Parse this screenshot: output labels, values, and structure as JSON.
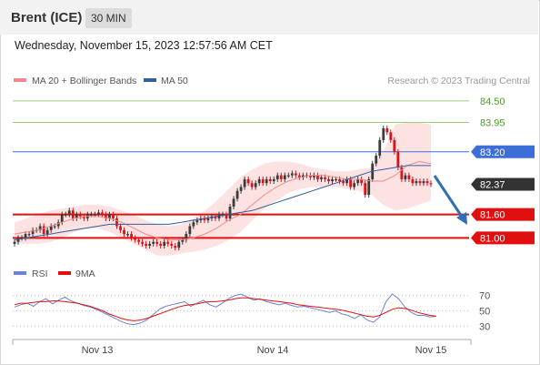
{
  "header": {
    "instrument": "Brent (ICE)",
    "timeframe": "30 MIN",
    "timestamp": "Wednesday, November 15, 2023 12:57:56 AM CET"
  },
  "legend": {
    "ma20": "MA 20 + Bollinger Bands",
    "ma50": "MA 50",
    "copyright": "Research © 2023 Trading Central",
    "rsi": "RSI",
    "rsi_ma": "9MA"
  },
  "colors": {
    "candle_up": "#3a3a3a",
    "candle_down": "#d8141b",
    "bollinger_fill": "#fde2e2",
    "ma20_line": "#f08a8a",
    "ma50_line": "#2f5fa0",
    "resistance_line": "#9acd7a",
    "pivot_line": "#3b6ed6",
    "support_line": "#e01010",
    "rsi_line": "#6a82d8",
    "rsi_ma_line": "#e01010",
    "arrow": "#2e6fb5"
  },
  "chart_data": [
    {
      "type": "candlestick",
      "title": "Brent (ICE)",
      "timeframe": "30 MIN",
      "x_labels": [
        "Nov 13",
        "Nov 14",
        "Nov 15"
      ],
      "ylim": [
        80.8,
        84.8
      ],
      "levels": [
        {
          "value": 84.5,
          "label": "84.50",
          "kind": "resistance"
        },
        {
          "value": 83.95,
          "label": "83.95",
          "kind": "resistance"
        },
        {
          "value": 83.2,
          "label": "83.20",
          "kind": "pivot"
        },
        {
          "value": 82.37,
          "label": "82.37",
          "kind": "last"
        },
        {
          "value": 81.6,
          "label": "81.60",
          "kind": "support"
        },
        {
          "value": 81.0,
          "label": "81.00",
          "kind": "support"
        }
      ],
      "closes": [
        80.9,
        81.0,
        81.0,
        81.1,
        81.1,
        81.2,
        81.2,
        81.3,
        81.1,
        81.2,
        81.3,
        81.3,
        81.4,
        81.6,
        81.6,
        81.7,
        81.5,
        81.6,
        81.55,
        81.5,
        81.6,
        81.6,
        81.6,
        81.65,
        81.6,
        81.5,
        81.6,
        81.5,
        81.3,
        81.2,
        81.1,
        81.1,
        81.0,
        80.95,
        80.9,
        80.85,
        80.8,
        80.85,
        80.9,
        80.85,
        80.8,
        80.9,
        80.85,
        80.8,
        80.75,
        80.9,
        80.95,
        81.1,
        81.3,
        81.4,
        81.45,
        81.5,
        81.45,
        81.5,
        81.55,
        81.5,
        81.6,
        81.6,
        81.5,
        81.8,
        82.0,
        82.2,
        82.3,
        82.5,
        82.4,
        82.3,
        82.4,
        82.5,
        82.4,
        82.5,
        82.45,
        82.5,
        82.6,
        82.5,
        82.6,
        82.6,
        82.65,
        82.6,
        82.55,
        82.6,
        82.6,
        82.55,
        82.6,
        82.5,
        82.55,
        82.5,
        82.45,
        82.5,
        82.5,
        82.45,
        82.4,
        82.5,
        82.3,
        82.4,
        82.5,
        82.4,
        82.1,
        82.5,
        82.9,
        83.1,
        83.5,
        83.8,
        83.7,
        83.5,
        83.2,
        82.8,
        82.5,
        82.6,
        82.5,
        82.4,
        82.45,
        82.4,
        82.45,
        82.4,
        82.37
      ],
      "ma20": [
        81.1,
        81.15,
        81.2,
        81.3,
        81.4,
        81.5,
        81.55,
        81.55,
        81.5,
        81.4,
        81.25,
        81.1,
        81.0,
        80.95,
        80.95,
        81.0,
        81.1,
        81.25,
        81.45,
        81.6,
        81.85,
        82.1,
        82.3,
        82.45,
        82.55,
        82.6,
        82.6,
        82.55,
        82.5,
        82.5,
        82.45,
        82.45,
        82.6,
        82.85,
        82.95,
        82.9
      ],
      "ma50": [
        80.95,
        81.0,
        81.05,
        81.1,
        81.15,
        81.2,
        81.25,
        81.3,
        81.35,
        81.35,
        81.35,
        81.35,
        81.35,
        81.35,
        81.4,
        81.45,
        81.5,
        81.55,
        81.6,
        81.65,
        81.7,
        81.8,
        81.9,
        82.0,
        82.1,
        82.2,
        82.3,
        82.4,
        82.5,
        82.6,
        82.7,
        82.75,
        82.8,
        82.85,
        82.85,
        82.85
      ],
      "bb_upper": [
        81.4,
        81.5,
        81.6,
        81.7,
        81.75,
        81.8,
        81.85,
        81.85,
        81.8,
        81.7,
        81.6,
        81.45,
        81.35,
        81.3,
        81.35,
        81.5,
        81.7,
        81.95,
        82.25,
        82.55,
        82.75,
        82.9,
        82.95,
        82.95,
        82.9,
        82.8,
        82.75,
        82.7,
        82.7,
        82.75,
        82.8,
        83.2,
        83.9,
        83.95,
        83.95,
        83.9
      ],
      "bb_lower": [
        80.85,
        80.85,
        80.85,
        80.9,
        81.0,
        81.15,
        81.25,
        81.25,
        81.15,
        81.0,
        80.85,
        80.7,
        80.55,
        80.55,
        80.6,
        80.65,
        80.7,
        80.8,
        80.95,
        81.15,
        81.45,
        81.75,
        81.95,
        82.15,
        82.25,
        82.3,
        82.3,
        82.3,
        82.25,
        82.2,
        82.1,
        81.85,
        81.7,
        81.75,
        81.85,
        81.95
      ]
    },
    {
      "type": "line",
      "title": "RSI",
      "ylim": [
        22,
        78
      ],
      "y_ticks": [
        70,
        50,
        30
      ],
      "series": [
        {
          "name": "RSI",
          "values": [
            55,
            58,
            60,
            56,
            62,
            66,
            59,
            64,
            68,
            63,
            60,
            57,
            55,
            52,
            48,
            44,
            40,
            36,
            33,
            32,
            34,
            38,
            45,
            52,
            56,
            58,
            60,
            62,
            56,
            60,
            64,
            58,
            55,
            60,
            66,
            70,
            72,
            68,
            64,
            66,
            62,
            60,
            58,
            60,
            57,
            55,
            56,
            54,
            52,
            50,
            48,
            50,
            46,
            44,
            40,
            45,
            38,
            35,
            42,
            62,
            72,
            66,
            55,
            48,
            44,
            44,
            42,
            43
          ]
        },
        {
          "name": "9MA",
          "values": [
            58,
            60,
            60,
            61,
            62,
            62,
            63,
            63,
            62,
            61,
            60,
            58,
            56,
            53,
            50,
            46,
            43,
            40,
            38,
            37,
            38,
            40,
            43,
            46,
            49,
            52,
            55,
            57,
            58,
            59,
            61,
            62,
            62,
            63,
            64,
            66,
            67,
            67,
            66,
            65,
            64,
            63,
            62,
            61,
            60,
            58,
            57,
            56,
            55,
            54,
            53,
            52,
            51,
            49,
            47,
            45,
            43,
            42,
            44,
            48,
            52,
            54,
            53,
            51,
            48,
            46,
            44,
            43
          ]
        }
      ]
    }
  ]
}
